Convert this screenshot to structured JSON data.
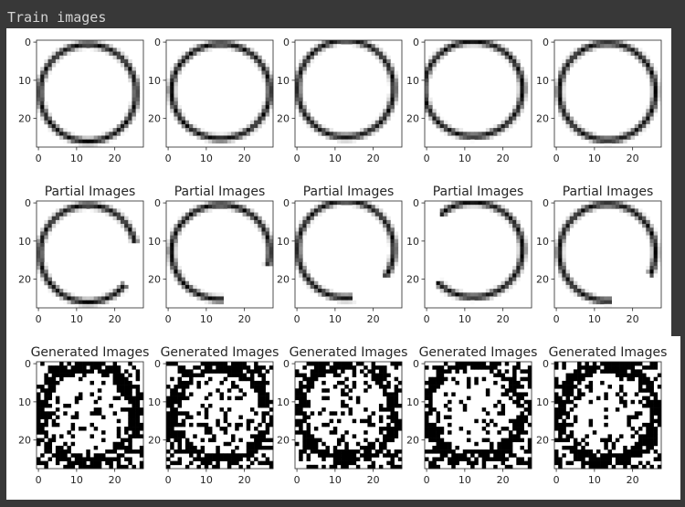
{
  "window": {
    "header_text": "Train images",
    "background_color": "#383838",
    "figure_background": "#ffffff"
  },
  "figure": {
    "rows": [
      {
        "title": ""
      },
      {
        "title": "Partial Images"
      },
      {
        "title": "Generated Images"
      }
    ],
    "columns": 5
  },
  "chart_data": {
    "type": "heatmap",
    "image_size": [
      28,
      28
    ],
    "colormap": "gray_r",
    "x_ticks": [
      0,
      10,
      20
    ],
    "y_ticks": [
      0,
      10,
      20
    ],
    "rows": [
      {
        "title": "",
        "panels": 5,
        "content": "hand-drawn circles"
      },
      {
        "title": "Partial Images",
        "panels": 5,
        "content": "circles with gaps"
      },
      {
        "title": "Generated Images",
        "panels": 5,
        "content": "noisy circles"
      }
    ]
  }
}
